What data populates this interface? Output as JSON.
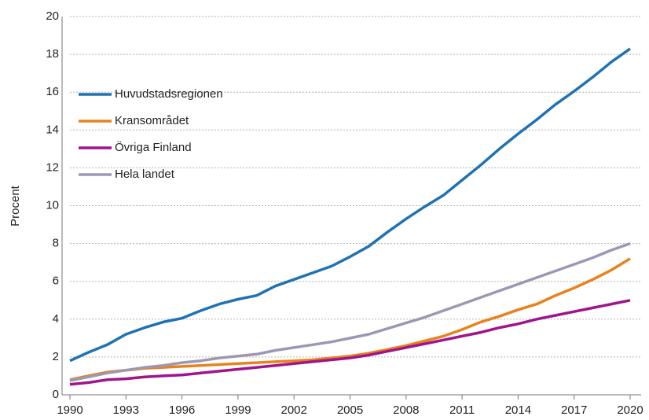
{
  "chart_data": {
    "type": "line",
    "ylabel": "Procent",
    "x": [
      1990,
      1991,
      1992,
      1993,
      1994,
      1995,
      1996,
      1997,
      1998,
      1999,
      2000,
      2001,
      2002,
      2003,
      2004,
      2005,
      2006,
      2007,
      2008,
      2009,
      2010,
      2011,
      2012,
      2013,
      2014,
      2015,
      2016,
      2017,
      2018,
      2019,
      2020
    ],
    "xlim": [
      1990,
      2020
    ],
    "xticks": [
      1990,
      1993,
      1996,
      1999,
      2002,
      2005,
      2008,
      2011,
      2014,
      2017,
      2020
    ],
    "ylim": [
      0,
      20
    ],
    "yticks": [
      0,
      2,
      4,
      6,
      8,
      10,
      12,
      14,
      16,
      18,
      20
    ],
    "grid": true,
    "legend": "upper left",
    "series": [
      {
        "name": "Huvudstadsregionen",
        "color": "#1f72b3",
        "values": [
          1.8,
          2.25,
          2.65,
          3.2,
          3.55,
          3.85,
          4.05,
          4.45,
          4.8,
          5.05,
          5.25,
          5.75,
          6.1,
          6.45,
          6.8,
          7.3,
          7.85,
          8.6,
          9.3,
          9.95,
          10.55,
          11.35,
          12.15,
          13.0,
          13.8,
          14.55,
          15.35,
          16.05,
          16.8,
          17.6,
          18.3
        ]
      },
      {
        "name": "Kransområdet",
        "color": "#e8821e",
        "values": [
          0.8,
          1.0,
          1.2,
          1.3,
          1.4,
          1.45,
          1.5,
          1.55,
          1.6,
          1.65,
          1.7,
          1.75,
          1.8,
          1.85,
          1.95,
          2.05,
          2.2,
          2.4,
          2.6,
          2.85,
          3.1,
          3.45,
          3.85,
          4.15,
          4.5,
          4.8,
          5.25,
          5.65,
          6.1,
          6.6,
          7.2
        ]
      },
      {
        "name": "Övriga Finland",
        "color": "#a0148c",
        "values": [
          0.55,
          0.65,
          0.8,
          0.85,
          0.95,
          1.0,
          1.05,
          1.15,
          1.25,
          1.35,
          1.45,
          1.55,
          1.65,
          1.75,
          1.85,
          1.95,
          2.1,
          2.3,
          2.5,
          2.7,
          2.9,
          3.1,
          3.3,
          3.55,
          3.75,
          4.0,
          4.2,
          4.4,
          4.6,
          4.8,
          5.0
        ]
      },
      {
        "name": "Hela landet",
        "color": "#9c98b4",
        "values": [
          0.75,
          0.95,
          1.15,
          1.3,
          1.45,
          1.55,
          1.7,
          1.8,
          1.95,
          2.05,
          2.15,
          2.35,
          2.5,
          2.65,
          2.8,
          3.0,
          3.2,
          3.5,
          3.8,
          4.1,
          4.45,
          4.8,
          5.15,
          5.5,
          5.85,
          6.2,
          6.55,
          6.9,
          7.25,
          7.65,
          8.0
        ]
      }
    ]
  }
}
